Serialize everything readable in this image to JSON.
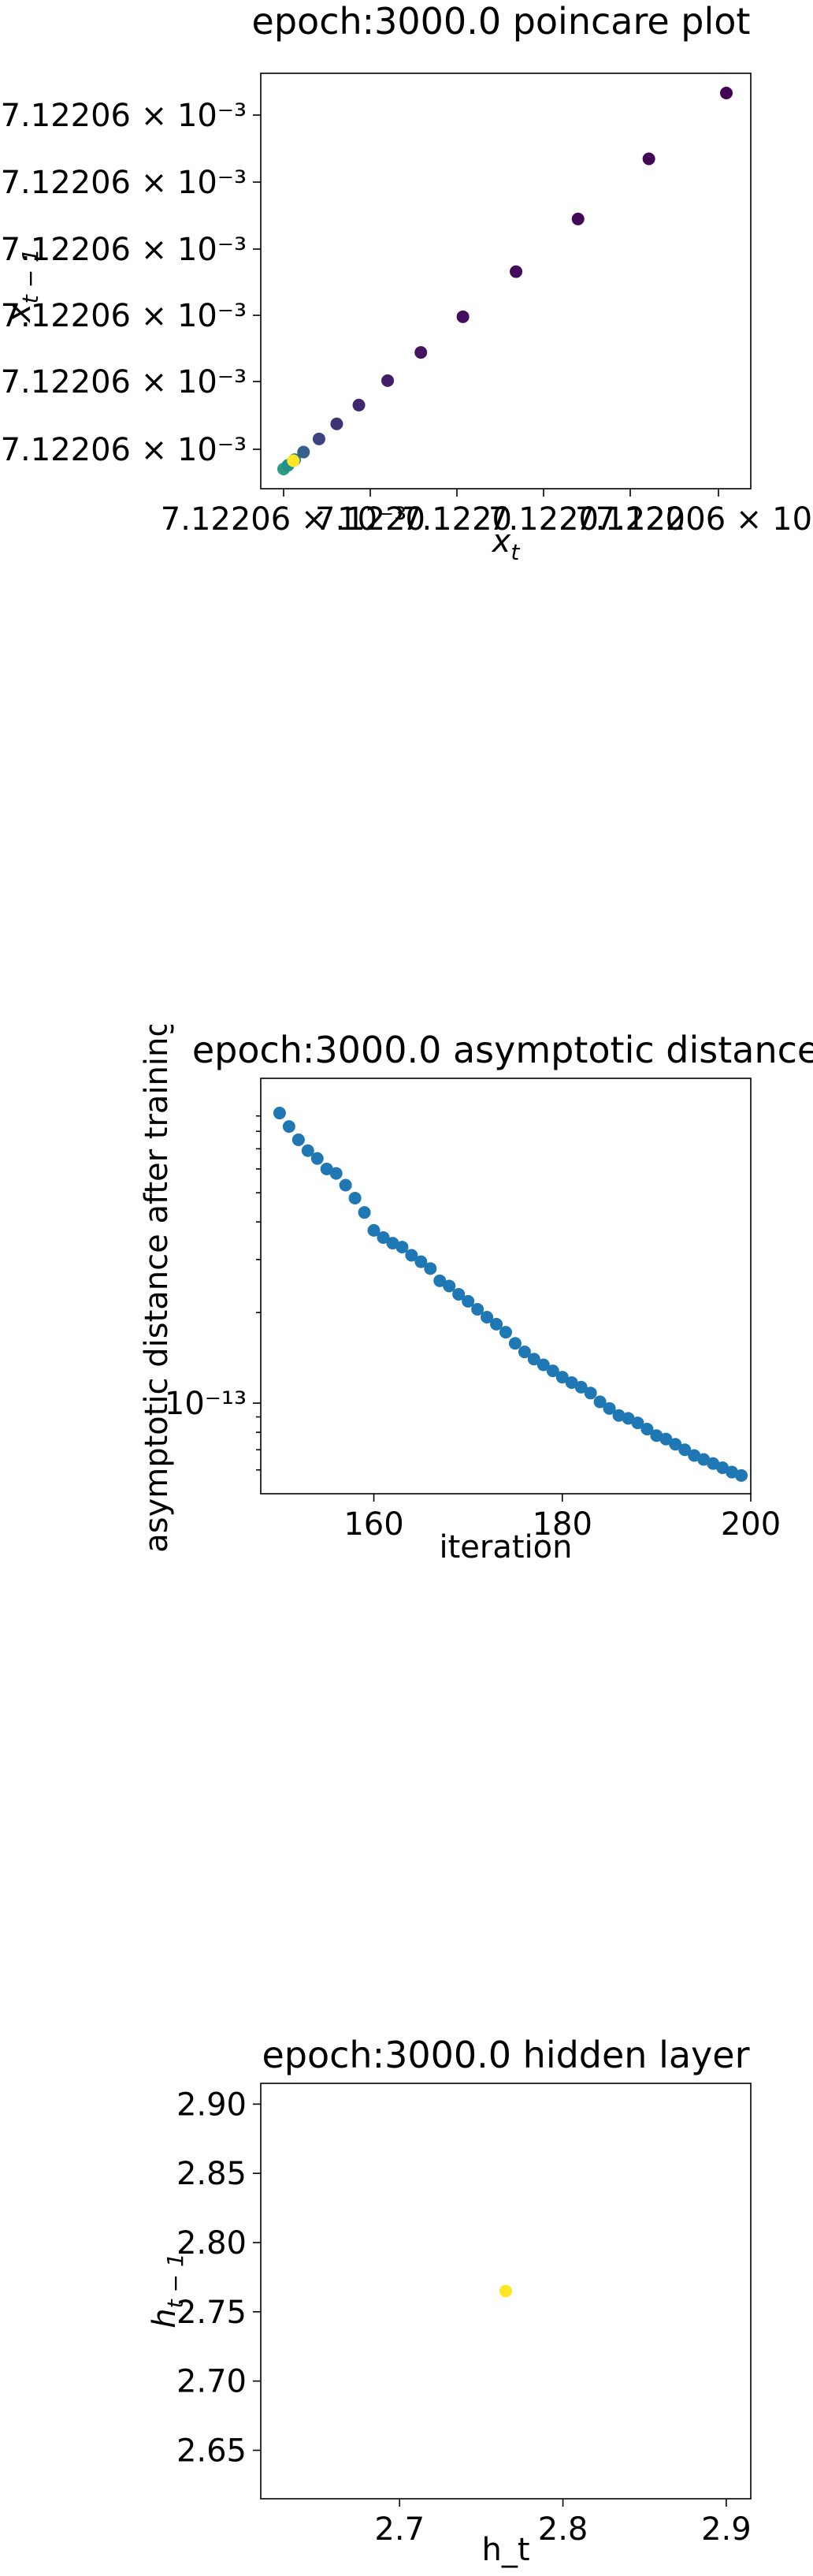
{
  "chart_data": [
    {
      "type": "scatter",
      "title": "epoch:3000.0 poincare plot",
      "xlabel": "x_t",
      "ylabel": "x_{t-1}",
      "x_tick_labels": [
        "7.12206 × 10⁻³",
        "7.1220",
        "7.1220",
        "7.1220",
        "7.1220",
        "7.12206 × 10⁻³"
      ],
      "y_tick_labels": [
        "7.12206 × 10⁻³",
        "7.12206 × 10⁻³",
        "7.12206 × 10⁻³",
        "7.12206 × 10⁻³",
        "7.12206 × 10⁻³",
        "7.12206 × 10⁻³"
      ],
      "colormap": "viridis",
      "note_values": "relative position within the plotted range (0..1), axis offsets not printed beyond tick text",
      "points": [
        {
          "x": 0.0,
          "y": 0.0,
          "c": 0.55
        },
        {
          "x": 0.01,
          "y": 0.01,
          "c": 0.5
        },
        {
          "x": 0.025,
          "y": 0.025,
          "c": 0.4
        },
        {
          "x": 0.045,
          "y": 0.045,
          "c": 0.3
        },
        {
          "x": 0.08,
          "y": 0.08,
          "c": 0.2
        },
        {
          "x": 0.12,
          "y": 0.12,
          "c": 0.15
        },
        {
          "x": 0.17,
          "y": 0.17,
          "c": 0.12
        },
        {
          "x": 0.235,
          "y": 0.235,
          "c": 0.09
        },
        {
          "x": 0.31,
          "y": 0.31,
          "c": 0.06
        },
        {
          "x": 0.405,
          "y": 0.405,
          "c": 0.04
        },
        {
          "x": 0.525,
          "y": 0.525,
          "c": 0.03
        },
        {
          "x": 0.665,
          "y": 0.665,
          "c": 0.02
        },
        {
          "x": 0.825,
          "y": 0.825,
          "c": 0.01
        },
        {
          "x": 1.0,
          "y": 1.0,
          "c": 0.0
        },
        {
          "x": 0.022,
          "y": 0.022,
          "c": 1.0
        }
      ]
    },
    {
      "type": "scatter",
      "title": "epoch:3000.0 asymptotic distance",
      "xlabel": "iteration",
      "ylabel": "asymptotic distance after training",
      "yscale": "log",
      "xlim": [
        148,
        200
      ],
      "ylim": [
        5e-14,
        1.2e-12
      ],
      "x_ticks": [
        160,
        180,
        200
      ],
      "y_ticks": [
        {
          "value": 1e-13,
          "label": "10⁻¹³"
        }
      ],
      "color": "#1f77b4",
      "x": [
        150,
        151,
        152,
        153,
        154,
        155,
        156,
        157,
        158,
        159,
        160,
        161,
        162,
        163,
        164,
        165,
        166,
        167,
        168,
        169,
        170,
        171,
        172,
        173,
        174,
        175,
        176,
        177,
        178,
        179,
        180,
        181,
        182,
        183,
        184,
        185,
        186,
        187,
        188,
        189,
        190,
        191,
        192,
        193,
        194,
        195,
        196,
        197,
        198,
        199
      ],
      "y": [
        9.2e-13,
        8.3e-13,
        7.5e-13,
        6.9e-13,
        6.5e-13,
        6e-13,
        5.8e-13,
        5.3e-13,
        4.8e-13,
        4.3e-13,
        3.75e-13,
        3.55e-13,
        3.4e-13,
        3.3e-13,
        3.1e-13,
        2.95e-13,
        2.8e-13,
        2.55e-13,
        2.45e-13,
        2.3e-13,
        2.18e-13,
        2.05e-13,
        1.93e-13,
        1.83e-13,
        1.72e-13,
        1.58e-13,
        1.48e-13,
        1.4e-13,
        1.34e-13,
        1.28e-13,
        1.22e-13,
        1.17e-13,
        1.13e-13,
        1.08e-13,
        1.01e-13,
        9.6e-14,
        9.1e-14,
        8.9e-14,
        8.6e-14,
        8.2e-14,
        7.8e-14,
        7.6e-14,
        7.3e-14,
        7e-14,
        6.7e-14,
        6.5e-14,
        6.3e-14,
        6.1e-14,
        5.9e-14,
        5.75e-14
      ]
    },
    {
      "type": "scatter",
      "title": "epoch:3000.0 hidden layer",
      "xlabel": "h_t",
      "ylabel": "h_{t-1}",
      "xlim": [
        2.615,
        2.915
      ],
      "ylim": [
        2.615,
        2.915
      ],
      "x_ticks": [
        2.7,
        2.8,
        2.9
      ],
      "x_tick_labels": [
        "2.7",
        "2.8",
        "2.9"
      ],
      "y_ticks": [
        2.65,
        2.7,
        2.75,
        2.8,
        2.85,
        2.9
      ],
      "y_tick_labels": [
        "2.65",
        "2.70",
        "2.75",
        "2.80",
        "2.85",
        "2.90"
      ],
      "color": "#fde725",
      "x": [
        2.765
      ],
      "y": [
        2.765
      ]
    }
  ]
}
